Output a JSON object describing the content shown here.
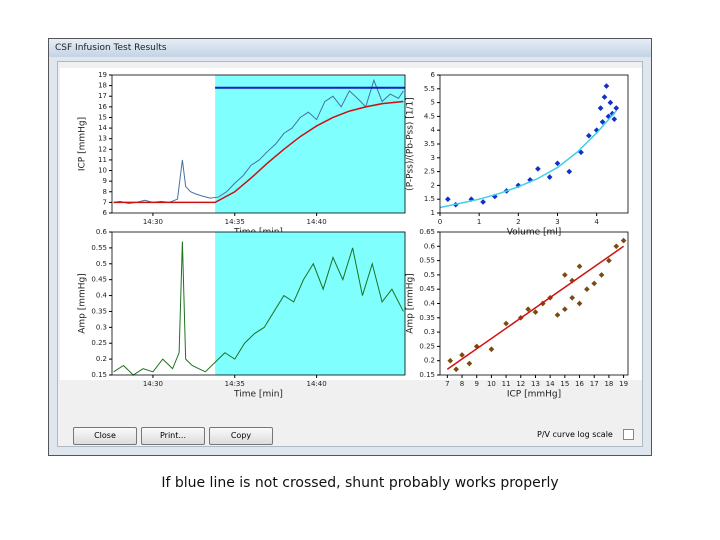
{
  "window": {
    "title": "CSF Infusion Test Results"
  },
  "buttons": [
    "Close",
    "Print...",
    "Copy"
  ],
  "checkbox_label": "P/V curve log scale",
  "caption": "If blue line is not crossed, shunt probably works properly",
  "chart_data": [
    {
      "type": "line",
      "xlabel": "Time [min]",
      "ylabel": "ICP [mmHg]",
      "xlim": [
        27.5,
        45.4
      ],
      "ylim": [
        6,
        19
      ],
      "xticks": [
        {
          "value": 30,
          "label": "14:30"
        },
        {
          "value": 35,
          "label": "14:35"
        },
        {
          "value": 40,
          "label": "14:40"
        }
      ],
      "yticks": [
        6,
        7,
        8,
        9,
        10,
        11,
        12,
        13,
        14,
        15,
        16,
        17,
        18,
        19
      ],
      "shade": {
        "from": 33.8,
        "to": 45.4,
        "color": "#80ffff"
      },
      "series": [
        {
          "type": "line",
          "color": "#4a6fa0",
          "x": [
            27.6,
            28,
            28.5,
            29,
            29.5,
            30,
            30.5,
            31,
            31.5,
            31.8,
            32,
            32.3,
            32.6,
            33,
            33.5,
            34,
            34.5,
            35,
            35.5,
            36,
            36.5,
            37,
            37.5,
            38,
            38.5,
            39,
            39.5,
            40,
            40.5,
            41,
            41.5,
            42,
            42.5,
            43,
            43.5,
            44,
            44.5,
            45,
            45.3
          ],
          "values": [
            7,
            7.1,
            6.9,
            7,
            7.2,
            7,
            7.1,
            7,
            7.3,
            11,
            8.5,
            8,
            7.8,
            7.6,
            7.4,
            7.5,
            8,
            8.8,
            9.5,
            10.5,
            11,
            11.8,
            12.5,
            13.5,
            14,
            15,
            15.5,
            14.8,
            16.5,
            17,
            16,
            17.5,
            16.8,
            16,
            18.5,
            16.5,
            17.2,
            16.8,
            17.5
          ]
        },
        {
          "type": "line",
          "color": "#cc1010",
          "width": 1.5,
          "x": [
            27.6,
            30,
            32,
            33.8,
            35,
            36,
            37,
            38,
            39,
            40,
            41,
            42,
            43,
            44,
            45.3
          ],
          "values": [
            7,
            7,
            7,
            7,
            8,
            9.3,
            10.7,
            12,
            13.2,
            14.2,
            15,
            15.6,
            16,
            16.3,
            16.5
          ]
        },
        {
          "type": "line",
          "color": "#1020c0",
          "width": 2,
          "x": [
            33.8,
            45.4
          ],
          "values": [
            17.8,
            17.8
          ]
        }
      ]
    },
    {
      "type": "scatter",
      "xlabel": "Volume [ml]",
      "ylabel": "(P-Pss)/(Pb-Pss) [1/1]",
      "xlim": [
        0,
        4.8
      ],
      "ylim": [
        1,
        6
      ],
      "xticks": [
        0,
        1,
        2,
        3,
        4
      ],
      "yticks": [
        1,
        1.5,
        2,
        2.5,
        3,
        3.5,
        4,
        4.5,
        5,
        5.5,
        6
      ],
      "series": [
        {
          "type": "scatter",
          "color": "#1030c8",
          "x": [
            0.2,
            0.4,
            0.8,
            1.1,
            1.4,
            1.7,
            2.0,
            2.3,
            2.5,
            2.8,
            3.0,
            3.3,
            3.6,
            3.8,
            4.0,
            4.1,
            4.2,
            4.3,
            4.35,
            4.4,
            4.45,
            4.5,
            4.25,
            4.15
          ],
          "values": [
            1.5,
            1.3,
            1.5,
            1.4,
            1.6,
            1.8,
            2.0,
            2.2,
            2.6,
            2.3,
            2.8,
            2.5,
            3.2,
            3.8,
            4.0,
            4.8,
            5.2,
            4.5,
            5.0,
            4.6,
            4.4,
            4.8,
            5.6,
            4.3
          ]
        },
        {
          "type": "line",
          "color": "#40d0e8",
          "width": 1.5,
          "x": [
            0,
            0.5,
            1,
            1.5,
            2,
            2.5,
            3,
            3.5,
            4,
            4.5
          ],
          "values": [
            1.2,
            1.35,
            1.5,
            1.7,
            1.95,
            2.25,
            2.65,
            3.2,
            3.9,
            4.7
          ]
        }
      ]
    },
    {
      "type": "line",
      "xlabel": "Time [min]",
      "ylabel": "Amp [mmHg]",
      "xlim": [
        27.5,
        45.4
      ],
      "ylim": [
        0.15,
        0.6
      ],
      "xticks": [
        {
          "value": 30,
          "label": "14:30"
        },
        {
          "value": 35,
          "label": "14:35"
        },
        {
          "value": 40,
          "label": "14:40"
        }
      ],
      "yticks": [
        0.15,
        0.2,
        0.25,
        0.3,
        0.35,
        0.4,
        0.45,
        0.5,
        0.55,
        0.6
      ],
      "shade": {
        "from": 33.8,
        "to": 45.4,
        "color": "#80ffff"
      },
      "series": [
        {
          "type": "line",
          "color": "#207020",
          "x": [
            27.6,
            28.2,
            28.8,
            29.4,
            30,
            30.6,
            31.2,
            31.6,
            31.8,
            32,
            32.4,
            32.8,
            33.2,
            33.8,
            34.4,
            35,
            35.6,
            36.2,
            36.8,
            37.4,
            38,
            38.6,
            39.2,
            39.8,
            40.4,
            41,
            41.6,
            42.2,
            42.8,
            43.4,
            44,
            44.6,
            45.3
          ],
          "values": [
            0.16,
            0.18,
            0.15,
            0.17,
            0.16,
            0.2,
            0.17,
            0.22,
            0.57,
            0.2,
            0.18,
            0.17,
            0.16,
            0.19,
            0.22,
            0.2,
            0.25,
            0.28,
            0.3,
            0.35,
            0.4,
            0.38,
            0.45,
            0.5,
            0.42,
            0.52,
            0.45,
            0.55,
            0.4,
            0.5,
            0.38,
            0.42,
            0.35
          ]
        }
      ]
    },
    {
      "type": "scatter",
      "xlabel": "ICP [mmHg]",
      "ylabel": "Amp [mmHg]",
      "xlim": [
        6.5,
        19.3
      ],
      "ylim": [
        0.15,
        0.65
      ],
      "xticks": [
        7,
        8,
        9,
        10,
        11,
        12,
        13,
        14,
        15,
        16,
        17,
        18,
        19
      ],
      "yticks": [
        0.15,
        0.2,
        0.25,
        0.3,
        0.35,
        0.4,
        0.45,
        0.5,
        0.55,
        0.6,
        0.65
      ],
      "series": [
        {
          "type": "scatter",
          "color": "#7a4a10",
          "x": [
            7.2,
            7.6,
            8.0,
            8.5,
            9.0,
            10,
            11,
            12,
            12.5,
            13,
            13.5,
            14,
            14.5,
            15,
            15,
            15.5,
            15.5,
            16,
            16,
            16.5,
            17,
            17.5,
            18,
            18.5,
            19
          ],
          "values": [
            0.2,
            0.17,
            0.22,
            0.19,
            0.25,
            0.24,
            0.33,
            0.35,
            0.38,
            0.37,
            0.4,
            0.42,
            0.36,
            0.5,
            0.38,
            0.48,
            0.42,
            0.53,
            0.4,
            0.45,
            0.47,
            0.5,
            0.55,
            0.6,
            0.62
          ]
        },
        {
          "type": "line",
          "color": "#d01010",
          "width": 1.5,
          "x": [
            7,
            19
          ],
          "values": [
            0.17,
            0.6
          ]
        }
      ]
    }
  ]
}
